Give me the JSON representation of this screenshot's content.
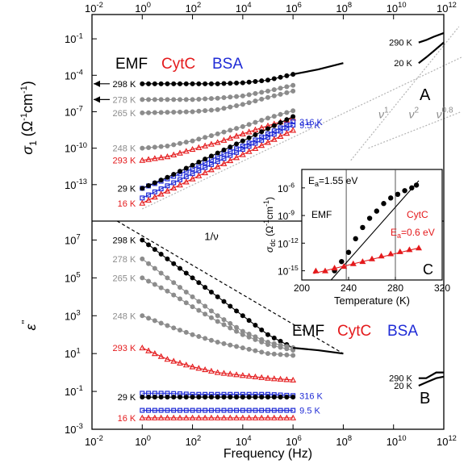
{
  "figure": {
    "x_axis_label": "Frequency (Hz)",
    "top_tick_labels": [
      {
        "base": "10",
        "exp": "-2"
      },
      {
        "base": "10",
        "exp": "0"
      },
      {
        "base": "10",
        "exp": "2"
      },
      {
        "base": "10",
        "exp": "4"
      },
      {
        "base": "10",
        "exp": "6"
      },
      {
        "base": "10",
        "exp": "8"
      },
      {
        "base": "10",
        "exp": "10"
      },
      {
        "base": "10",
        "exp": "12"
      }
    ],
    "bottom_tick_labels": [
      {
        "base": "10",
        "exp": "-2"
      },
      {
        "base": "10",
        "exp": "0"
      },
      {
        "base": "10",
        "exp": "2"
      },
      {
        "base": "10",
        "exp": "4"
      },
      {
        "base": "10",
        "exp": "6"
      },
      {
        "base": "10",
        "exp": "8"
      },
      {
        "base": "10",
        "exp": "10"
      },
      {
        "base": "10",
        "exp": "12"
      }
    ]
  },
  "legend": {
    "items": [
      {
        "label": "EMF",
        "color": "#000000"
      },
      {
        "label": "CytC",
        "color": "#e41a1c"
      },
      {
        "label": "BSA",
        "color": "#1f2bd6"
      }
    ]
  },
  "colors": {
    "black": "#000000",
    "gray": "#8c8c8c",
    "red": "#e41a1c",
    "blue": "#1f2bd6",
    "guide": "#b4b4b4"
  },
  "chart_data": [
    {
      "panel": "A",
      "type": "line",
      "panel_label": "A",
      "ylabel": {
        "main": "σ",
        "sub": "1",
        "unit_pre": "(Ω",
        "unit_sup1": "-1",
        "unit_mid": "cm",
        "unit_sup2": "-1",
        "unit_post": ")"
      },
      "x_scale": "log",
      "xlim": [
        0.01,
        1000000000000.0
      ],
      "y_scale": "log",
      "ylim": [
        1e-16,
        10
      ],
      "y_tick_labels": [
        {
          "base": "10",
          "exp": "-1",
          "value": 0.1
        },
        {
          "base": "10",
          "exp": "-4",
          "value": 0.0001
        },
        {
          "base": "10",
          "exp": "-7",
          "value": 1e-07
        },
        {
          "base": "10",
          "exp": "-10",
          "value": 1e-10
        },
        {
          "base": "10",
          "exp": "-13",
          "value": 1e-13
        }
      ],
      "slope_labels": [
        {
          "text": "ν",
          "exp": "1",
          "x": 2500000000.0,
          "y": 3e-08
        },
        {
          "text": "ν",
          "exp": "2",
          "x": 40000000000.0,
          "y": 3e-08
        },
        {
          "text": "ν",
          "exp": "0.8",
          "x": 500000000000.0,
          "y": 3e-08
        }
      ],
      "guide_lines": [
        {
          "points": [
            [
              1,
              1e-15
            ],
            [
              5000000000000.0,
              0.003
            ]
          ]
        },
        {
          "points": [
            [
              200000000.0,
              1e-11
            ],
            [
              4000000000000.0,
              1
            ]
          ]
        },
        {
          "points": [
            [
              1000000000.0,
              1e-10
            ],
            [
              5000000000000.0,
              1e-07
            ]
          ]
        }
      ],
      "series": [
        {
          "name": "298 K",
          "color": "black",
          "marker": "circle",
          "arrow": true,
          "x": [
            1,
            10,
            100,
            1000,
            10000,
            100000,
            1000000
          ],
          "y": [
            2e-05,
            2e-05,
            2e-05,
            2e-05,
            2.4e-05,
            4e-05,
            0.00012
          ]
        },
        {
          "name": "278 K",
          "color": "gray",
          "marker": "circle",
          "arrow": true,
          "x": [
            1,
            10,
            100,
            1000,
            10000,
            100000,
            1000000
          ],
          "y": [
            1e-06,
            1e-06,
            1e-06,
            1.3e-06,
            2e-06,
            5e-06,
            1.5e-05
          ]
        },
        {
          "name": "265 K",
          "color": "gray",
          "marker": "circle",
          "x": [
            1,
            10,
            100,
            1000,
            10000,
            100000,
            1000000
          ],
          "y": [
            8e-08,
            9e-08,
            1e-07,
            1.5e-07,
            4e-07,
            1.5e-06,
            5e-06
          ]
        },
        {
          "name": "248 K",
          "color": "gray",
          "marker": "circle",
          "x": [
            1,
            10,
            100,
            1000,
            10000,
            100000,
            1000000
          ],
          "y": [
            1e-10,
            1.5e-10,
            4e-10,
            1.5e-09,
            6e-09,
            3e-08,
            1.2e-07
          ]
        },
        {
          "name": "293 K",
          "color": "red",
          "marker": "triangle",
          "x": [
            1,
            10,
            100,
            1000,
            10000,
            100000,
            1000000
          ],
          "y": [
            1e-11,
            2e-11,
            8e-11,
            3e-10,
            1.5e-09,
            7e-09,
            3e-08
          ]
        },
        {
          "name": "316 K",
          "color": "blue",
          "marker": "square",
          "x": [
            1,
            10,
            100,
            1000,
            10000,
            100000,
            1000000
          ],
          "y": [
            5e-14,
            3e-13,
            2e-12,
            2e-11,
            1.5e-10,
            1.5e-09,
            1.5e-08
          ]
        },
        {
          "name": "29 K",
          "color": "black",
          "marker": "circle",
          "x": [
            1,
            10,
            100,
            1000,
            10000,
            100000,
            1000000
          ],
          "y": [
            5e-14,
            4e-13,
            4e-12,
            4e-11,
            4e-10,
            4e-09,
            4e-08
          ]
        },
        {
          "name": "9.5 K",
          "color": "blue",
          "marker": "square",
          "x": [
            1,
            10,
            100,
            1000,
            10000,
            100000,
            1000000
          ],
          "y": [
            8e-15,
            8e-14,
            8e-13,
            8e-12,
            8e-11,
            8e-10,
            8e-09
          ]
        },
        {
          "name": "16 K",
          "color": "red",
          "marker": "triangle",
          "x": [
            1,
            10,
            100,
            1000,
            10000,
            100000,
            1000000
          ],
          "y": [
            3e-15,
            3e-14,
            3e-13,
            3e-12,
            3e-11,
            3e-10,
            3e-09
          ]
        },
        {
          "name": "",
          "color": "black",
          "marker": "none",
          "x": [
            1000000,
            10000000,
            100000000
          ],
          "y": [
            0.00012,
            0.0003,
            0.001
          ]
        },
        {
          "name": "290 K",
          "color": "black",
          "marker": "none",
          "x": [
            100000000000.0,
            200000000000.0,
            400000000000.0,
            1000000000000.0
          ],
          "y": [
            0.05,
            0.08,
            0.15,
            0.3
          ]
        },
        {
          "name": "20 K",
          "color": "black",
          "marker": "none",
          "x": [
            100000000000.0,
            200000000000.0,
            400000000000.0,
            1000000000000.0
          ],
          "y": [
            0.001,
            0.003,
            0.01,
            0.05
          ]
        }
      ]
    },
    {
      "panel": "B",
      "type": "line",
      "panel_label": "B",
      "ylabel": {
        "main": "ε",
        "sup": "''"
      },
      "x_scale": "log",
      "xlim": [
        0.01,
        1000000000000.0
      ],
      "y_scale": "log",
      "ylim": [
        0.001,
        100000000.0
      ],
      "y_tick_labels": [
        {
          "base": "10",
          "exp": "7",
          "value": 10000000.0
        },
        {
          "base": "10",
          "exp": "5",
          "value": 100000.0
        },
        {
          "base": "10",
          "exp": "3",
          "value": 1000
        },
        {
          "base": "10",
          "exp": "1",
          "value": 10
        },
        {
          "base": "10",
          "exp": "-1",
          "value": 0.1
        },
        {
          "base": "10",
          "exp": "-3",
          "value": 0.001
        }
      ],
      "slope_label": {
        "text": "1/ν",
        "x": 300,
        "y": 10000000.0
      },
      "slope_line": {
        "points": [
          [
            0.1,
            100000000.0
          ],
          [
            100000000.0,
            10
          ]
        ]
      },
      "legend_position": "center-right",
      "series": [
        {
          "name": "298 K",
          "color": "black",
          "marker": "circle",
          "x": [
            1,
            10,
            100,
            1000,
            10000,
            100000,
            1000000
          ],
          "y": [
            10000000.0,
            1000000.0,
            100000.0,
            10000.0,
            1000,
            100,
            20
          ]
        },
        {
          "name": "278 K",
          "color": "gray",
          "marker": "circle",
          "x": [
            1,
            10,
            100,
            1000,
            10000,
            100000,
            1000000
          ],
          "y": [
            1000000.0,
            100000.0,
            10000.0,
            1000,
            150,
            40,
            20
          ]
        },
        {
          "name": "265 K",
          "color": "gray",
          "marker": "circle",
          "x": [
            1,
            10,
            100,
            1000,
            10000,
            100000,
            1000000
          ],
          "y": [
            100000.0,
            20000.0,
            3000,
            500,
            100,
            30,
            15
          ]
        },
        {
          "name": "248 K",
          "color": "gray",
          "marker": "circle",
          "x": [
            1,
            10,
            100,
            1000,
            10000,
            100000,
            1000000
          ],
          "y": [
            1000,
            300,
            100,
            40,
            20,
            10,
            8
          ]
        },
        {
          "name": "293 K",
          "color": "red",
          "marker": "triangle",
          "x": [
            1,
            10,
            100,
            1000,
            10000,
            100000,
            1000000
          ],
          "y": [
            20,
            5,
            2,
            1,
            0.7,
            0.5,
            0.4
          ]
        },
        {
          "name": "316 K",
          "color": "blue",
          "marker": "square",
          "x": [
            1,
            10,
            100,
            1000,
            10000,
            100000,
            1000000
          ],
          "y": [
            0.08,
            0.08,
            0.07,
            0.07,
            0.07,
            0.07,
            0.06
          ]
        },
        {
          "name": "29 K",
          "color": "black",
          "marker": "circle",
          "x": [
            1,
            10,
            100,
            1000,
            10000,
            100000,
            1000000
          ],
          "y": [
            0.05,
            0.05,
            0.05,
            0.05,
            0.05,
            0.05,
            0.05
          ]
        },
        {
          "name": "9.5 K",
          "color": "blue",
          "marker": "square",
          "x": [
            1,
            10,
            100,
            1000,
            10000,
            100000,
            1000000
          ],
          "y": [
            0.01,
            0.01,
            0.01,
            0.01,
            0.01,
            0.01,
            0.01
          ]
        },
        {
          "name": "16 K",
          "color": "red",
          "marker": "triangle",
          "x": [
            1,
            10,
            100,
            1000,
            10000,
            100000,
            1000000
          ],
          "y": [
            0.004,
            0.004,
            0.004,
            0.004,
            0.004,
            0.004,
            0.004
          ]
        },
        {
          "name": "",
          "color": "black",
          "marker": "none",
          "x": [
            1000000,
            10000000,
            100000000
          ],
          "y": [
            20,
            15,
            10
          ]
        },
        {
          "name": "290 K",
          "color": "black",
          "marker": "none",
          "x": [
            100000000000.0,
            200000000000.0,
            500000000000.0,
            1000000000000.0
          ],
          "y": [
            0.5,
            0.5,
            1,
            1
          ]
        },
        {
          "name": "20 K",
          "color": "black",
          "marker": "none",
          "x": [
            100000000000.0,
            200000000000.0,
            500000000000.0,
            1000000000000.0
          ],
          "y": [
            0.2,
            0.3,
            0.5,
            0.6
          ]
        }
      ]
    },
    {
      "panel": "C",
      "type": "scatter",
      "panel_label": "C",
      "xlabel": "Temperature (K)",
      "ylabel": {
        "main": "σ",
        "sub": "dc",
        "unit_pre": "(Ω",
        "unit_sup1": "-1",
        "unit_mid": "cm",
        "unit_sup2": "-1",
        "unit_post": ")"
      },
      "x_scale": "linear",
      "xlim": [
        200,
        320
      ],
      "y_scale": "log",
      "ylim": [
        1e-16,
        0.0001
      ],
      "x_tick_labels": [
        "200",
        "240",
        "280",
        "320"
      ],
      "y_tick_labels": [
        {
          "base": "10",
          "exp": "-6",
          "value": 1e-06
        },
        {
          "base": "10",
          "exp": "-9",
          "value": 1e-09
        },
        {
          "base": "10",
          "exp": "-12",
          "value": 1e-12
        },
        {
          "base": "10",
          "exp": "-15",
          "value": 1e-15
        }
      ],
      "annotations": [
        {
          "text": "E",
          "sub": "a",
          "tail": "=1.55 eV",
          "color": "black"
        },
        {
          "text": "EMF",
          "color": "black"
        },
        {
          "text": "CytC",
          "color": "red"
        },
        {
          "text": "E",
          "sub": "a",
          "tail": "=0.6 eV",
          "color": "red"
        }
      ],
      "series": [
        {
          "name": "EMF",
          "color": "black",
          "marker": "circle",
          "x": [
            228,
            234,
            240,
            246,
            252,
            258,
            264,
            270,
            276,
            282,
            288,
            294,
            298
          ],
          "y": [
            1e-15,
            1e-14,
            1e-13,
            3e-12,
            5e-11,
            5e-10,
            3e-09,
            2e-08,
            8e-08,
            2e-07,
            5e-07,
            1e-06,
            2e-06
          ]
        },
        {
          "name": "CytC",
          "color": "red",
          "marker": "triangle",
          "x": [
            212,
            220,
            228,
            236,
            244,
            252,
            260,
            268,
            276,
            284,
            292,
            300
          ],
          "y": [
            1e-15,
            1e-15,
            2e-15,
            3e-15,
            6e-15,
            1e-14,
            2e-14,
            4e-14,
            7e-14,
            1.2e-13,
            2e-13,
            3e-13
          ]
        }
      ],
      "fit_lines": [
        {
          "color": "black",
          "points": [
            [
              225,
              1e-16
            ],
            [
              300,
              6e-06
            ]
          ]
        },
        {
          "color": "red",
          "points": [
            [
              210,
              5e-16
            ],
            [
              300,
              3e-13
            ]
          ]
        }
      ],
      "vertical_lines": [
        238,
        280
      ]
    }
  ]
}
